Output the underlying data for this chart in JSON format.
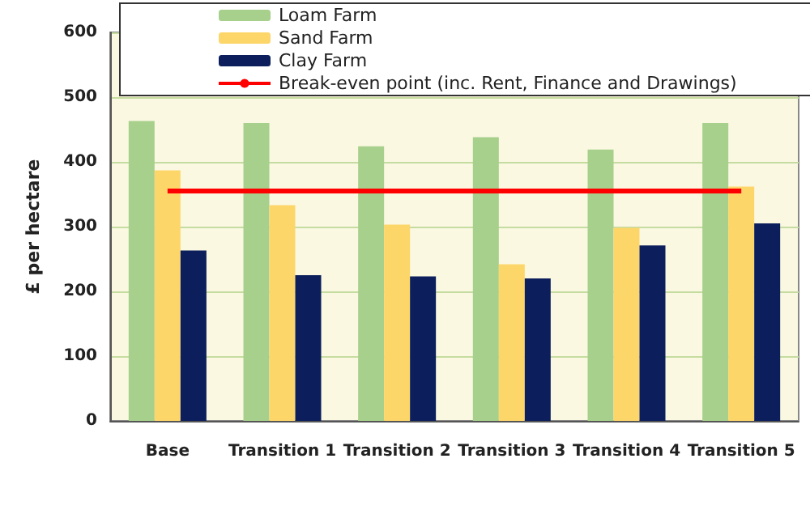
{
  "chart_data": {
    "type": "bar",
    "ylabel": "£ per hectare",
    "categories": [
      "Base",
      "Transition 1",
      "Transition 2",
      "Transition 3",
      "Transition 4",
      "Transition 5"
    ],
    "series": [
      {
        "name": "Loam Farm",
        "color": "#a6d08b",
        "values": [
          463,
          460,
          424,
          438,
          419,
          460
        ]
      },
      {
        "name": "Sand Farm",
        "color": "#fdd66a",
        "values": [
          387,
          333,
          303,
          242,
          298,
          362
        ]
      },
      {
        "name": "Clay Farm",
        "color": "#0c1f5c",
        "values": [
          263,
          225,
          223,
          220,
          271,
          305
        ]
      },
      {
        "name": "Break-even point (inc. Rent, Finance and Drawings)",
        "color": "#ff0000",
        "type": "line",
        "values": [
          355,
          355,
          355,
          355,
          355,
          355
        ]
      }
    ],
    "ylim": [
      0,
      600
    ],
    "yticks": [
      0,
      100,
      200,
      300,
      400,
      500,
      600
    ],
    "grid": "y",
    "legend": "top",
    "marker": "none"
  }
}
